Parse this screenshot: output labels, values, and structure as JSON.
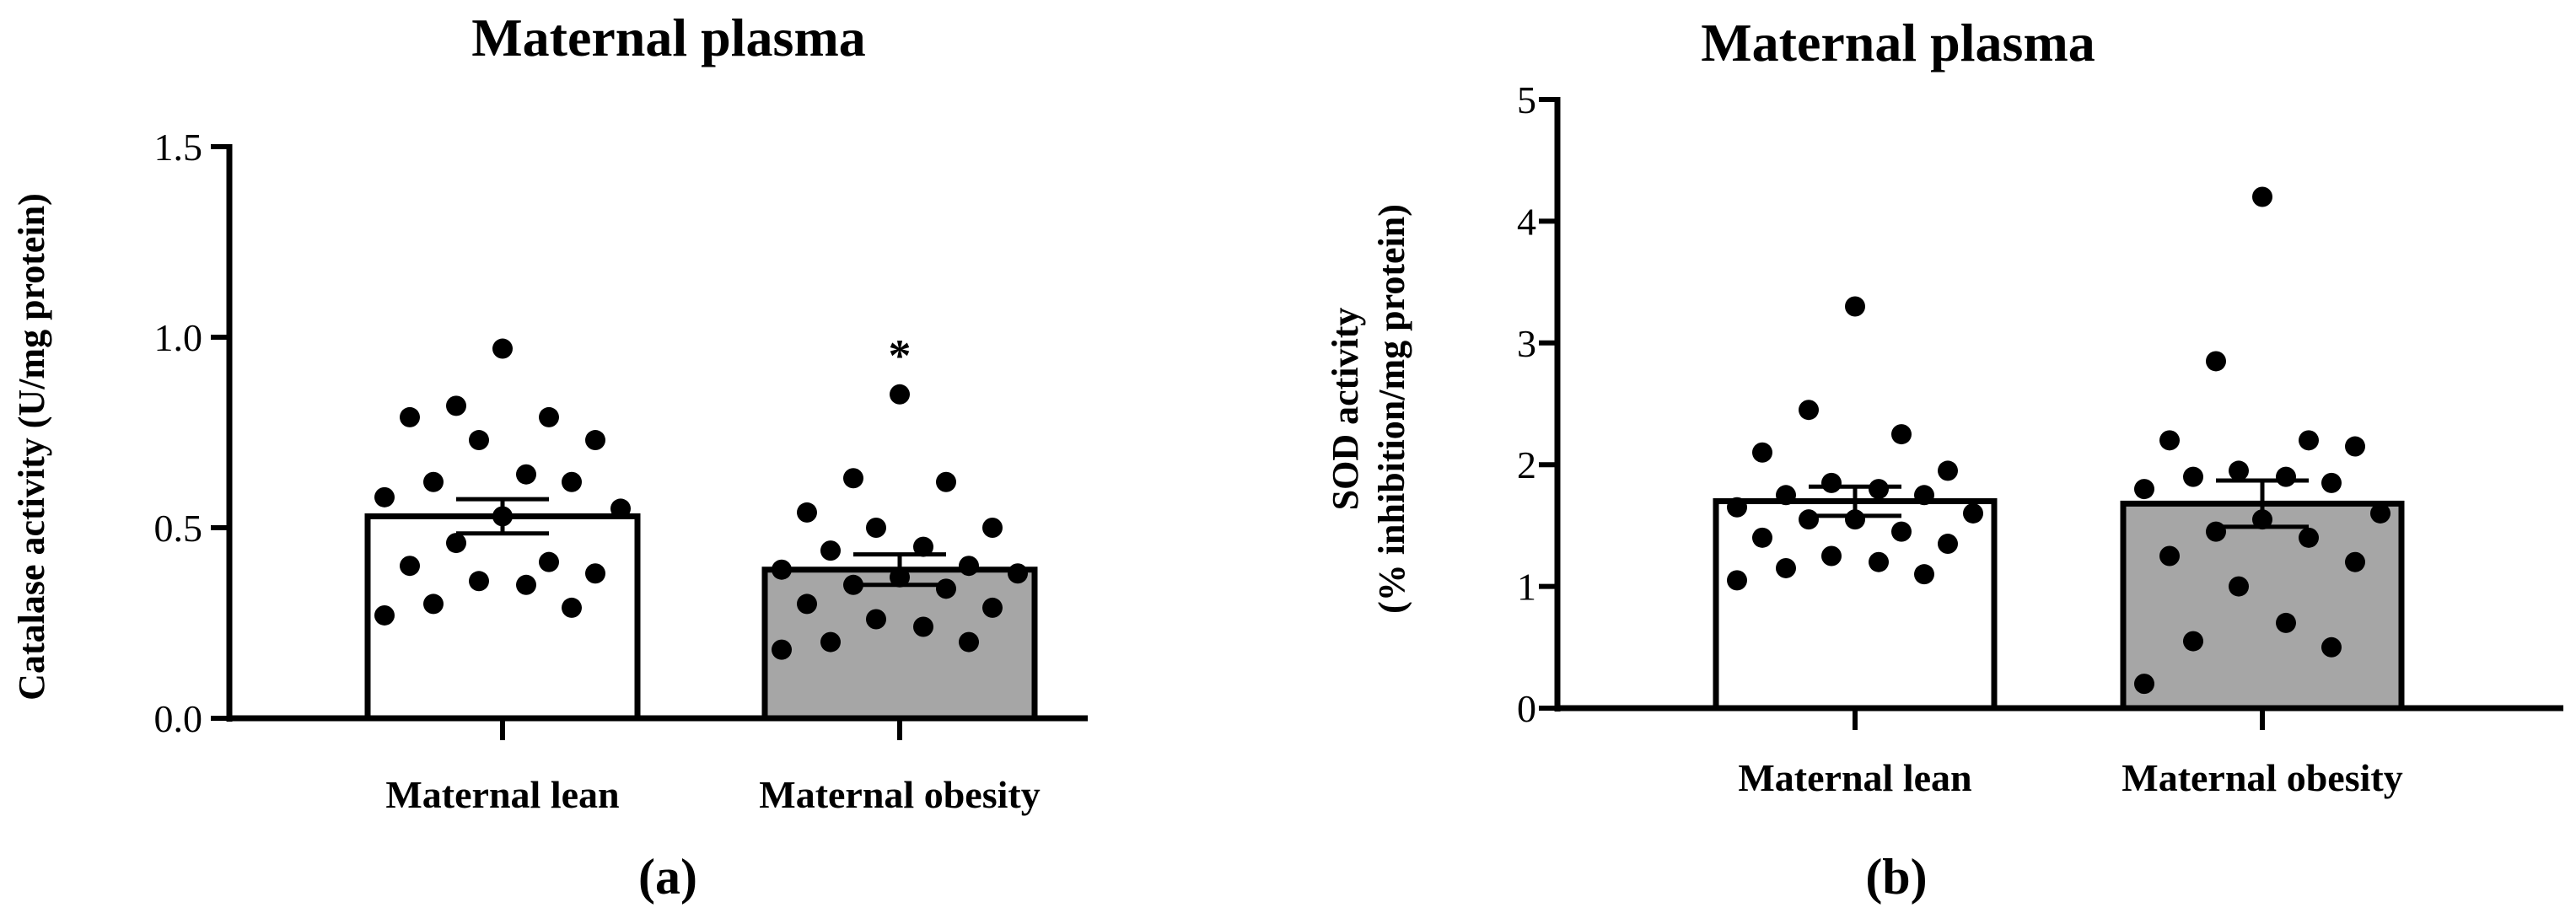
{
  "chart_data": [
    {
      "type": "bar",
      "panel_label": "(a)",
      "title": "Maternal plasma",
      "ylabel": "Catalase activity (U/mg protein)",
      "ylim": [
        0,
        1.5
      ],
      "yticks": [
        "0.0",
        "0.5",
        "1.0",
        "1.5"
      ],
      "categories": [
        "Maternal lean",
        "Maternal obesity"
      ],
      "values": [
        0.53,
        0.39
      ],
      "error": [
        0.045,
        0.04
      ],
      "annotations": [
        "",
        "*"
      ],
      "colors": [
        "#ffffff",
        "#a6a6a6"
      ],
      "points": [
        [
          0.97,
          0.82,
          0.79,
          0.79,
          0.73,
          0.73,
          0.64,
          0.62,
          0.62,
          0.58,
          0.55,
          0.53,
          0.46,
          0.41,
          0.4,
          0.38,
          0.36,
          0.35,
          0.3,
          0.29,
          0.27
        ],
        [
          0.85,
          0.63,
          0.62,
          0.54,
          0.5,
          0.5,
          0.45,
          0.44,
          0.4,
          0.39,
          0.38,
          0.37,
          0.35,
          0.34,
          0.3,
          0.29,
          0.26,
          0.24,
          0.2,
          0.2,
          0.18
        ]
      ]
    },
    {
      "type": "bar",
      "panel_label": "(b)",
      "title": "Maternal plasma",
      "ylabel_lines": [
        "SOD activity",
        "(% inhibition/mg protein)"
      ],
      "ylim": [
        0,
        5
      ],
      "yticks": [
        "0",
        "1",
        "2",
        "3",
        "4",
        "5"
      ],
      "categories": [
        "Maternal lean",
        "Maternal obesity"
      ],
      "values": [
        1.7,
        1.68
      ],
      "error": [
        0.12,
        0.19
      ],
      "annotations": [
        "",
        ""
      ],
      "colors": [
        "#ffffff",
        "#a6a6a6"
      ],
      "points": [
        [
          3.3,
          2.45,
          2.25,
          2.1,
          1.95,
          1.85,
          1.8,
          1.75,
          1.75,
          1.65,
          1.6,
          1.55,
          1.55,
          1.45,
          1.4,
          1.35,
          1.25,
          1.2,
          1.15,
          1.1,
          1.05
        ],
        [
          4.2,
          2.85,
          2.2,
          2.2,
          2.15,
          1.95,
          1.9,
          1.9,
          1.85,
          1.8,
          1.6,
          1.55,
          1.45,
          1.4,
          1.25,
          1.2,
          1.0,
          0.7,
          0.55,
          0.5,
          0.2
        ]
      ]
    }
  ]
}
